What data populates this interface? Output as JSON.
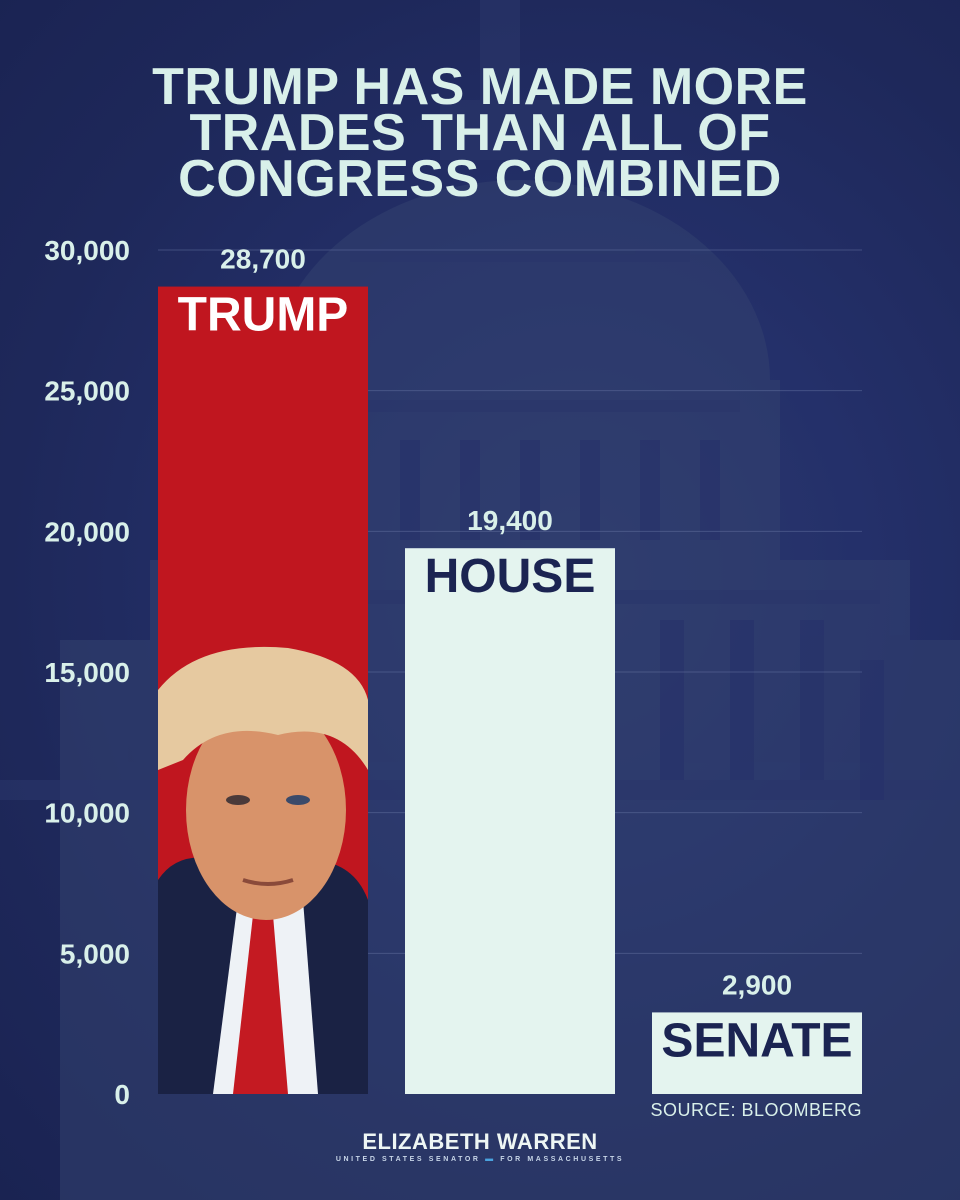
{
  "title_lines": [
    "TRUMP HAS MADE MORE",
    "TRADES THAN ALL OF",
    "CONGRESS COMBINED"
  ],
  "source": "SOURCE: BLOOMBERG",
  "brand": {
    "name": "ELIZABETH WARREN",
    "subtitle_left": "UNITED STATES SENATOR",
    "subtitle_right": "FOR MASSACHUSETTS"
  },
  "colors": {
    "background": "#1f2a5a",
    "text": "#d9f0ea",
    "trump_bar": "#c0161f",
    "congress_bar": "#e4f4ef",
    "bar_label_dark": "#1b2452"
  },
  "chart_data": {
    "type": "bar",
    "title": "TRUMP HAS MADE MORE TRADES THAN ALL OF CONGRESS COMBINED",
    "categories": [
      "TRUMP",
      "HOUSE",
      "SENATE"
    ],
    "values": [
      28700,
      19400,
      2900
    ],
    "data_labels": [
      "28,700",
      "19,400",
      "2,900"
    ],
    "bar_colors": [
      "#c0161f",
      "#e4f4ef",
      "#e4f4ef"
    ],
    "category_label_colors": [
      "#ffffff",
      "#1b2452",
      "#1b2452"
    ],
    "ylim": [
      0,
      30000
    ],
    "yticks": [
      0,
      5000,
      10000,
      15000,
      20000,
      25000,
      30000
    ],
    "ytick_labels": [
      "0",
      "5,000",
      "10,000",
      "15,000",
      "20,000",
      "25,000",
      "30,000"
    ],
    "grid": true,
    "legend": "none",
    "category_label_position": "inside-top",
    "annotations": [
      "photo of Trump inside the TRUMP bar"
    ]
  }
}
